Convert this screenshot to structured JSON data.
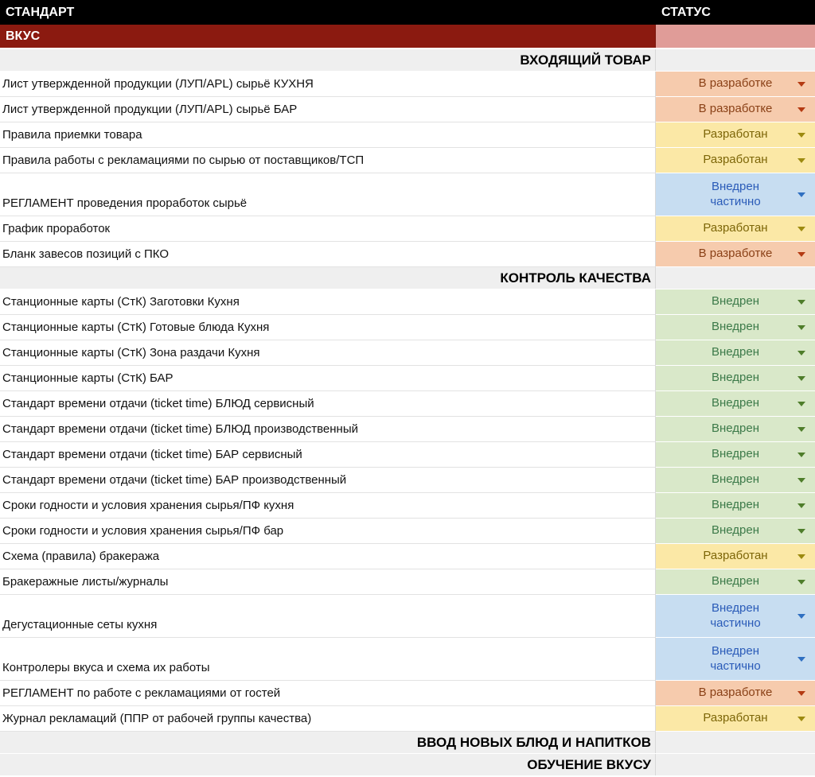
{
  "header": {
    "standard": "СТАНДАРТ",
    "status": "СТАТУС"
  },
  "category": {
    "label": "ВКУС"
  },
  "colors": {
    "header_bg": "#000000",
    "header_fg": "#ffffff",
    "category_bg": "#8b1a10",
    "category_fg": "#ffffff",
    "category_status_bg": "#e09c98",
    "section_bg": "#efefef",
    "grid": "#e2e2e2",
    "divider": "#d8d8d8"
  },
  "status_styles": {
    "in_dev": {
      "label": "В разработке",
      "bg": "#f6cbad",
      "fg": "#8a4117",
      "arrow": "#b43a12"
    },
    "developed": {
      "label": "Разработан",
      "bg": "#fbe8a6",
      "fg": "#7d6608",
      "arrow": "#9c8a10"
    },
    "implemented": {
      "label": "Внедрен",
      "bg": "#d9e8c9",
      "fg": "#3c7a49",
      "arrow": "#4e7d2a"
    },
    "partial": {
      "label": "Внедрен частично",
      "bg": "#c7ddf1",
      "fg": "#2a5bb8",
      "arrow": "#2f6fc1"
    }
  },
  "rows": [
    {
      "type": "section",
      "label": "ВХОДЯЩИЙ ТОВАР"
    },
    {
      "type": "item",
      "label": "Лист утвержденной продукции (ЛУП/APL) сырьё КУХНЯ",
      "status": "in_dev"
    },
    {
      "type": "item",
      "label": "Лист утвержденной продукции (ЛУП/APL) сырьё БАР",
      "status": "in_dev"
    },
    {
      "type": "item",
      "label": "Правила приемки товара",
      "status": "developed"
    },
    {
      "type": "item",
      "label": "Правила работы с рекламациями по сырью от поставщиков/ТСП",
      "status": "developed"
    },
    {
      "type": "item",
      "label": "РЕГЛАМЕНТ проведения проработок сырьё",
      "status": "partial",
      "tall": true
    },
    {
      "type": "item",
      "label": "График проработок",
      "status": "developed"
    },
    {
      "type": "item",
      "label": "Бланк завесов позиций с ПКО",
      "status": "in_dev"
    },
    {
      "type": "section",
      "label": "КОНТРОЛЬ КАЧЕСТВА"
    },
    {
      "type": "item",
      "label": "Станционные карты (СтК) Заготовки Кухня",
      "status": "implemented"
    },
    {
      "type": "item",
      "label": "Станционные карты (СтК) Готовые блюда Кухня",
      "status": "implemented"
    },
    {
      "type": "item",
      "label": "Станционные карты (СтК) Зона раздачи Кухня",
      "status": "implemented"
    },
    {
      "type": "item",
      "label": "Станционные карты (СтК) БАР",
      "status": "implemented"
    },
    {
      "type": "item",
      "label": "Стандарт времени отдачи (ticket time) БЛЮД сервисный",
      "status": "implemented"
    },
    {
      "type": "item",
      "label": "Стандарт времени отдачи (ticket time) БЛЮД производственный",
      "status": "implemented"
    },
    {
      "type": "item",
      "label": "Стандарт времени отдачи (ticket time) БАР сервисный",
      "status": "implemented"
    },
    {
      "type": "item",
      "label": "Стандарт времени отдачи (ticket time) БАР производственный",
      "status": "implemented"
    },
    {
      "type": "item",
      "label": "Сроки годности и условия хранения сырья/ПФ кухня",
      "status": "implemented"
    },
    {
      "type": "item",
      "label": "Сроки годности и условия хранения сырья/ПФ бар",
      "status": "implemented"
    },
    {
      "type": "item",
      "label": "Схема (правила) бракеража",
      "status": "developed"
    },
    {
      "type": "item",
      "label": "Бракеражные листы/журналы",
      "status": "implemented"
    },
    {
      "type": "item",
      "label": "Дегустационные сеты кухня",
      "status": "partial",
      "tall": true
    },
    {
      "type": "item",
      "label": "Контролеры вкуса и схема их работы",
      "status": "partial",
      "tall": true
    },
    {
      "type": "item",
      "label": "РЕГЛАМЕНТ по работе с рекламациями от гостей",
      "status": "in_dev"
    },
    {
      "type": "item",
      "label": "Журнал рекламаций (ППР от рабочей группы качества)",
      "status": "developed"
    },
    {
      "type": "section",
      "label": "ВВОД НОВЫХ БЛЮД И НАПИТКОВ"
    },
    {
      "type": "section",
      "label": "ОБУЧЕНИЕ ВКУСУ"
    }
  ]
}
